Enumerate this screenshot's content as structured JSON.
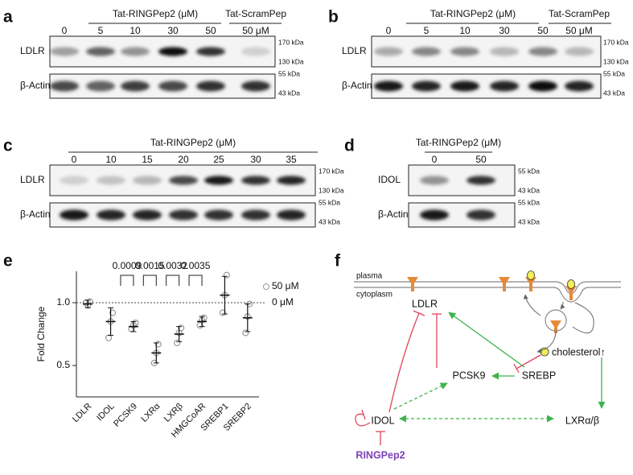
{
  "panels": {
    "a": {
      "label": "a",
      "header": "Tat-RINGPep2 (μM)",
      "header2": "Tat-ScramPep",
      "lanes": [
        "0",
        "5",
        "10",
        "30",
        "50",
        "50 μM"
      ],
      "rows": [
        "LDLR",
        "β-Actin"
      ],
      "markers": [
        "170 kDa",
        "130 kDa",
        "55 kDa",
        "43 kDa"
      ]
    },
    "b": {
      "label": "b",
      "header": "Tat-RINGPep2 (μM)",
      "header2": "Tat-ScramPep",
      "lanes": [
        "0",
        "5",
        "10",
        "30",
        "50",
        "50 μM"
      ],
      "rows": [
        "LDLR",
        "β-Actin"
      ],
      "markers": [
        "170 kDa",
        "130 kDa",
        "55 kDa",
        "43 kDa"
      ]
    },
    "c": {
      "label": "c",
      "header": "Tat-RINGPep2 (μM)",
      "lanes": [
        "0",
        "10",
        "15",
        "20",
        "25",
        "30",
        "35"
      ],
      "rows": [
        "LDLR",
        "β-Actin"
      ],
      "markers": [
        "170 kDa",
        "130 kDa",
        "55 kDa",
        "43 kDa"
      ]
    },
    "d": {
      "label": "d",
      "header": "Tat-RINGPep2 (μM)",
      "lanes": [
        "0",
        "50"
      ],
      "rows": [
        "IDOL",
        "β-Actin"
      ],
      "markers": [
        "55 kDa",
        "43 kDa",
        "55 kDa",
        "43 kDa"
      ]
    }
  },
  "chart_data": {
    "type": "dot",
    "label": "e",
    "ylabel": "Fold Change",
    "categories": [
      "LDLR",
      "IDOL",
      "PCSK9",
      "LXRα",
      "LXRβ",
      "HMGCoAR",
      "SREBP1",
      "SREBP2"
    ],
    "series": [
      {
        "name": "50 μM",
        "color": "#9a9a9a",
        "values": [
          0.99,
          0.85,
          0.81,
          0.6,
          0.75,
          0.85,
          1.06,
          0.88
        ],
        "errors": [
          0.03,
          0.11,
          0.04,
          0.08,
          0.06,
          0.04,
          0.15,
          0.11
        ],
        "points": [
          [
            1.0,
            0.98,
            1.01
          ],
          [
            0.72,
            0.85,
            0.92
          ],
          [
            0.79,
            0.82,
            0.84
          ],
          [
            0.52,
            0.6,
            0.67
          ],
          [
            0.68,
            0.76,
            0.8
          ],
          [
            0.82,
            0.86,
            0.88
          ],
          [
            0.92,
            1.06,
            1.22
          ],
          [
            0.76,
            0.89,
            0.99
          ]
        ]
      }
    ],
    "reference": {
      "name": "0 μM",
      "value": 1
    },
    "pvalues": [
      null,
      null,
      "0.0009",
      "0.0015",
      "0.0032",
      "0.0035",
      null,
      null
    ],
    "ylim": [
      0.25,
      1.25
    ],
    "yticks": [
      {
        "value": 0.5,
        "label": "0.5"
      },
      {
        "value": 1,
        "label": "1.0"
      }
    ]
  },
  "diagram": {
    "label": "f",
    "plasma": "plasma",
    "cytoplasm": "cytoplasm",
    "ldlr": "LDLR",
    "pcsk9": "PCSK9",
    "srebp": "SREBP",
    "cholesterol": "cholesterol↑",
    "idol": "IDOL",
    "lxr": "LXRα/β",
    "ringpep": "RINGPep2"
  }
}
